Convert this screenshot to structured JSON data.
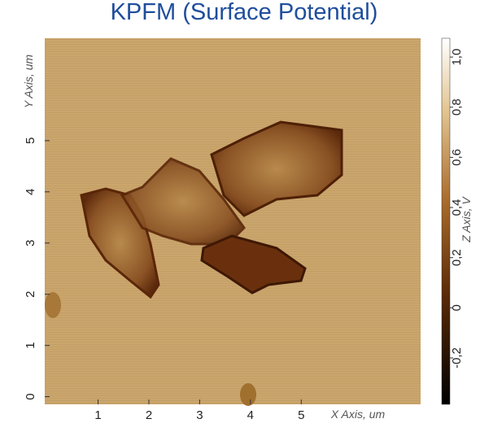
{
  "chart_data": {
    "type": "image",
    "title": "KPFM (Surface Potential)",
    "xlabel": "X Axis, um",
    "ylabel": "Y Axis, um",
    "xlim": [
      -0.05,
      7.35
    ],
    "ylim": [
      -0.15,
      7.0
    ],
    "xticks": [
      1,
      2,
      3,
      4,
      5
    ],
    "yticks": [
      0,
      1,
      2,
      3,
      4,
      5
    ],
    "colorbar": {
      "label": "Z Axis, V",
      "lim": [
        -0.385,
        1.075
      ],
      "ticks": [
        {
          "value": -0.2,
          "label": "-0,2"
        },
        0,
        {
          "value": 0.2,
          "label": "0,2"
        },
        {
          "value": 0.4,
          "label": "0,4"
        },
        {
          "value": 0.6,
          "label": "0,6"
        },
        {
          "value": 0.8,
          "label": "0,8"
        },
        {
          "value": 1.0,
          "label": "1,0"
        }
      ]
    }
  }
}
